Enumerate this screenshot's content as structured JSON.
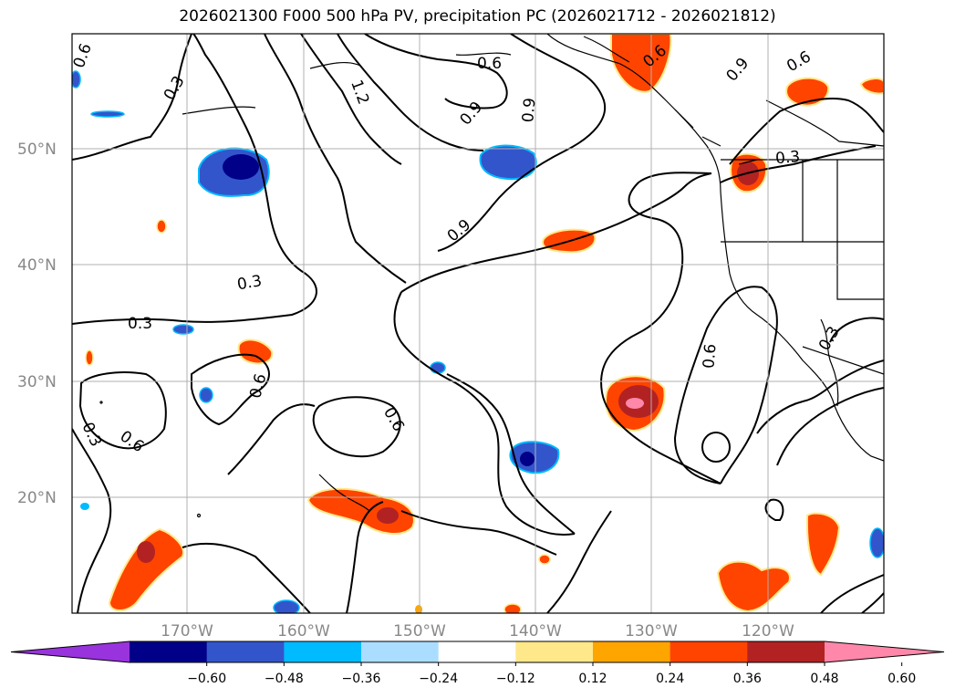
{
  "title": "2026021300 F000 500 hPa PV, precipitation PC (2026021712 - 2026021812)",
  "map": {
    "lat_labels": [
      "50°N",
      "40°N",
      "30°N",
      "20°N"
    ],
    "lon_labels": [
      "170°W",
      "160°W",
      "150°W",
      "140°W",
      "130°W",
      "120°W"
    ],
    "contour_labels": [
      "0.6",
      "0.3",
      "0.6",
      "1.2",
      "0.9",
      "0.9",
      "0.6",
      "0.9",
      "0.3",
      "0.9",
      "0.3",
      "0.3",
      "0.6",
      "0.3",
      "0.6",
      "0.6",
      "0.6",
      "0.3"
    ],
    "colors": {
      "land_outline": "#000000",
      "grid": "#b0b0b0",
      "contour": "#000000"
    }
  },
  "colorbar": {
    "ticks": [
      "−0.60",
      "−0.48",
      "−0.36",
      "−0.24",
      "−0.12",
      "0.12",
      "0.24",
      "0.36",
      "0.48",
      "0.60"
    ],
    "colors": [
      "#9933dd",
      "#000088",
      "#3355cc",
      "#00bbff",
      "#aaddff",
      "#ffffff",
      "#ffe88a",
      "#ffa500",
      "#ff4400",
      "#b22222",
      "#ff88aa"
    ]
  }
}
